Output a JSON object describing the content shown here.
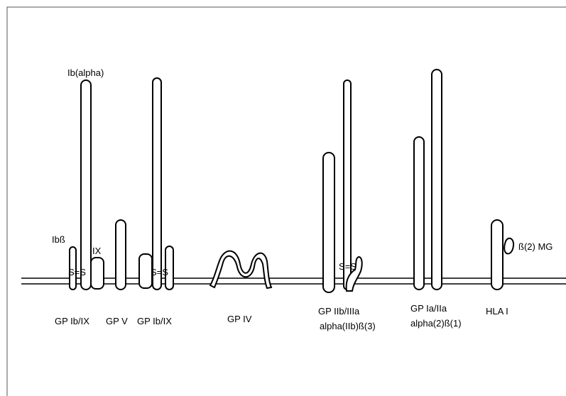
{
  "labels": [
    "Ib(alpha)",
    "Ibß",
    "IX",
    "S=S",
    "S=S",
    "S=S",
    "GP Ib/IX",
    "GP V",
    "GP Ib/IX",
    "GP IV",
    "GP IIb/IIIa",
    "alpha(IIb)ß(3)",
    "GP Ia/IIa",
    "alpha(2)ß(1)",
    "HLA I",
    "ß(2) MG"
  ]
}
